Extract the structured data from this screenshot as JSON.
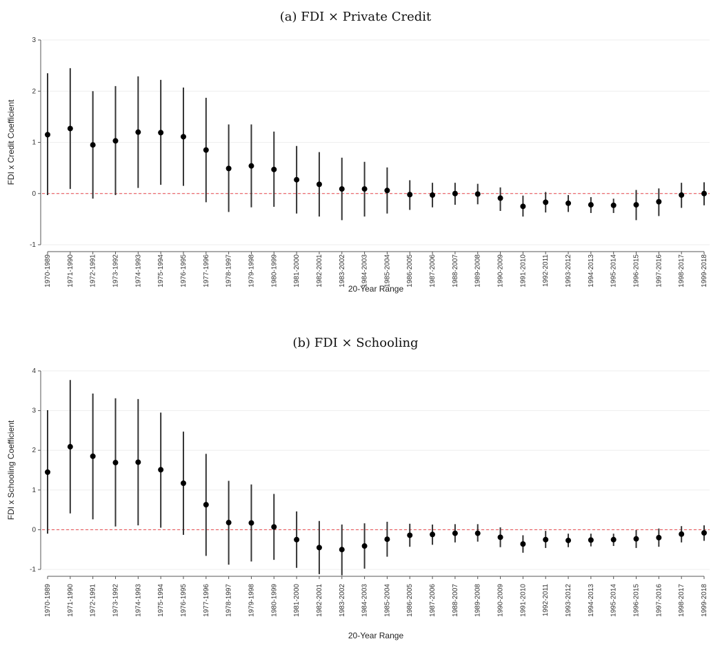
{
  "chart_data": [
    {
      "type": "scatter",
      "title": "(a) FDI × Private Credit",
      "xlabel": "20-Year Range",
      "ylabel": "FDI x Credit Coefficient",
      "ylim": [
        -1,
        3
      ],
      "yticks": [
        "-1",
        "0",
        "1",
        "2",
        "3"
      ],
      "reference_line": {
        "value": 0,
        "style": "dashed",
        "color": "#e8454a"
      },
      "point_color": "#000000",
      "ci_color": "#333333",
      "categories": [
        "1970-1989",
        "1971-1990",
        "1972-1991",
        "1973-1992",
        "1974-1993",
        "1975-1994",
        "1976-1995",
        "1977-1996",
        "1978-1997",
        "1979-1998",
        "1980-1999",
        "1981-2000",
        "1982-2001",
        "1983-2002",
        "1984-2003",
        "1985-2004",
        "1986-2005",
        "1987-2006",
        "1988-2007",
        "1989-2008",
        "1990-2009",
        "1991-2010",
        "1992-2011",
        "1993-2012",
        "1994-2013",
        "1995-2014",
        "1996-2015",
        "1997-2016",
        "1998-2017",
        "1999-2018"
      ],
      "estimates": [
        1.15,
        1.27,
        0.95,
        1.03,
        1.2,
        1.19,
        1.11,
        0.85,
        0.49,
        0.54,
        0.47,
        0.27,
        0.18,
        0.09,
        0.09,
        0.06,
        -0.02,
        -0.03,
        0.0,
        -0.01,
        -0.09,
        -0.25,
        -0.17,
        -0.19,
        -0.22,
        -0.23,
        -0.22,
        -0.16,
        -0.03,
        0.0
      ],
      "ci_lower": [
        -0.03,
        0.09,
        -0.1,
        -0.03,
        0.11,
        0.17,
        0.15,
        -0.17,
        -0.36,
        -0.27,
        -0.26,
        -0.39,
        -0.45,
        -0.52,
        -0.45,
        -0.39,
        -0.32,
        -0.27,
        -0.22,
        -0.21,
        -0.34,
        -0.45,
        -0.37,
        -0.36,
        -0.38,
        -0.38,
        -0.52,
        -0.44,
        -0.28,
        -0.23
      ],
      "ci_upper": [
        2.35,
        2.45,
        2.0,
        2.1,
        2.29,
        2.22,
        2.07,
        1.87,
        1.35,
        1.35,
        1.21,
        0.93,
        0.81,
        0.7,
        0.62,
        0.51,
        0.26,
        0.21,
        0.21,
        0.19,
        0.12,
        -0.04,
        0.03,
        -0.03,
        -0.07,
        -0.1,
        0.07,
        0.1,
        0.21,
        0.22
      ]
    },
    {
      "type": "scatter",
      "title": "(b) FDI × Schooling",
      "xlabel": "20-Year Range",
      "ylabel": "FDI x Schooling Coefficient",
      "ylim": [
        -1,
        4
      ],
      "yticks": [
        "-1",
        "0",
        "1",
        "2",
        "3",
        "4"
      ],
      "reference_line": {
        "value": 0,
        "style": "dashed",
        "color": "#e8454a"
      },
      "point_color": "#000000",
      "ci_color": "#333333",
      "categories": [
        "1970-1989",
        "1971-1990",
        "1972-1991",
        "1973-1992",
        "1974-1993",
        "1975-1994",
        "1976-1995",
        "1977-1996",
        "1978-1997",
        "1979-1998",
        "1980-1999",
        "1981-2000",
        "1982-2001",
        "1983-2002",
        "1984-2003",
        "1985-2004",
        "1986-2005",
        "1987-2006",
        "1988-2007",
        "1989-2008",
        "1990-2009",
        "1991-2010",
        "1992-2011",
        "1993-2012",
        "1994-2013",
        "1995-2014",
        "1996-2015",
        "1997-2016",
        "1998-2017",
        "1999-2018"
      ],
      "estimates": [
        1.45,
        2.09,
        1.85,
        1.69,
        1.7,
        1.51,
        1.17,
        0.63,
        0.18,
        0.17,
        0.07,
        -0.25,
        -0.45,
        -0.5,
        -0.41,
        -0.24,
        -0.14,
        -0.12,
        -0.09,
        -0.09,
        -0.19,
        -0.36,
        -0.25,
        -0.27,
        -0.26,
        -0.25,
        -0.23,
        -0.2,
        -0.11,
        -0.08
      ],
      "ci_lower": [
        -0.1,
        0.41,
        0.26,
        0.08,
        0.11,
        0.05,
        -0.13,
        -0.66,
        -0.88,
        -0.8,
        -0.76,
        -0.96,
        -1.12,
        -1.15,
        -0.98,
        -0.68,
        -0.43,
        -0.38,
        -0.32,
        -0.3,
        -0.44,
        -0.58,
        -0.46,
        -0.44,
        -0.42,
        -0.41,
        -0.46,
        -0.43,
        -0.32,
        -0.28
      ],
      "ci_upper": [
        3.01,
        3.77,
        3.43,
        3.31,
        3.29,
        2.95,
        2.47,
        1.91,
        1.23,
        1.14,
        0.9,
        0.46,
        0.22,
        0.13,
        0.16,
        0.2,
        0.15,
        0.13,
        0.14,
        0.14,
        0.06,
        -0.14,
        -0.03,
        -0.1,
        -0.1,
        -0.1,
        -0.01,
        0.03,
        0.09,
        0.11
      ]
    }
  ]
}
